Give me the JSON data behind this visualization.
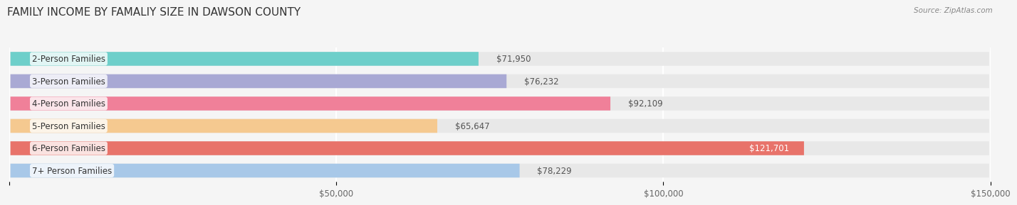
{
  "title": "FAMILY INCOME BY FAMALIY SIZE IN DAWSON COUNTY",
  "source": "Source: ZipAtlas.com",
  "categories": [
    "2-Person Families",
    "3-Person Families",
    "4-Person Families",
    "5-Person Families",
    "6-Person Families",
    "7+ Person Families"
  ],
  "values": [
    71950,
    76232,
    92109,
    65647,
    121701,
    78229
  ],
  "bar_colors": [
    "#6ecfca",
    "#a9a9d4",
    "#f08099",
    "#f5c990",
    "#e8736a",
    "#a8c8e8"
  ],
  "label_colors": [
    "#333333",
    "#333333",
    "#333333",
    "#333333",
    "#ffffff",
    "#333333"
  ],
  "value_labels": [
    "$71,950",
    "$76,232",
    "$92,109",
    "$65,647",
    "$121,701",
    "$78,229"
  ],
  "xlim": [
    0,
    150000
  ],
  "xticks": [
    0,
    50000,
    100000,
    150000
  ],
  "xtick_labels": [
    "",
    "$50,000",
    "$100,000",
    "$150,000"
  ],
  "background_color": "#f5f5f5",
  "bar_bg_color": "#e8e8e8",
  "title_fontsize": 11,
  "label_fontsize": 8.5,
  "value_fontsize": 8.5,
  "bar_height": 0.62
}
